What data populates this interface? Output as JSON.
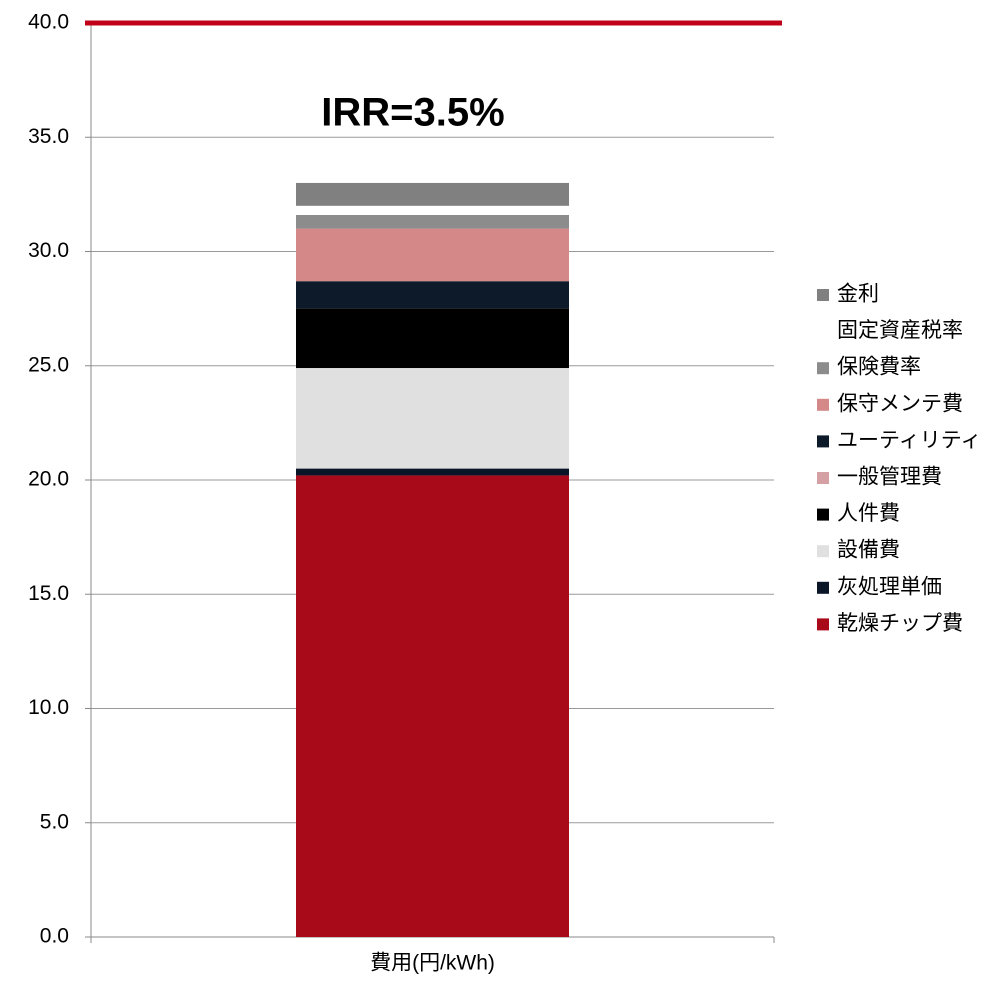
{
  "chart_data": {
    "type": "stacked_bar",
    "annotation": "IRR=3.5%",
    "categories": [
      "費用(円/kWh)"
    ],
    "ylim": [
      0,
      40
    ],
    "yticks": [
      {
        "value": 0,
        "label": "0.0"
      },
      {
        "value": 5,
        "label": "5.0"
      },
      {
        "value": 10,
        "label": "10.0"
      },
      {
        "value": 15,
        "label": "15.0"
      },
      {
        "value": 20,
        "label": "20.0"
      },
      {
        "value": 25,
        "label": "25.0"
      },
      {
        "value": 30,
        "label": "30.0"
      },
      {
        "value": 35,
        "label": "35.0"
      },
      {
        "value": 40,
        "label": "40.0"
      }
    ],
    "grid": true,
    "target_line": {
      "value": 40,
      "color": "#c00018"
    },
    "series": [
      {
        "name": "乾燥チップ費",
        "color": "#a80a1a",
        "values": [
          20.2
        ]
      },
      {
        "name": "灰処理単価",
        "color": "#0a1628",
        "values": [
          0.3
        ]
      },
      {
        "name": "設備費",
        "color": "#e0e0e0",
        "values": [
          4.4
        ]
      },
      {
        "name": "人件費",
        "color": "#000000",
        "values": [
          2.6
        ]
      },
      {
        "name": "一般管理費",
        "color": "#d4a0a4",
        "values": [
          0
        ]
      },
      {
        "name": "ユーティリティ",
        "color": "#0c1a2a",
        "values": [
          1.2
        ]
      },
      {
        "name": "保守メンテ費",
        "color": "#d48888",
        "values": [
          2.3
        ]
      },
      {
        "name": "保険費率",
        "color": "#8c8c8c",
        "values": [
          0.6
        ]
      },
      {
        "name": "固定資産税率",
        "color": "#ffffff",
        "values": [
          0.4
        ]
      },
      {
        "name": "金利",
        "color": "#808080",
        "values": [
          1.0
        ]
      }
    ]
  }
}
